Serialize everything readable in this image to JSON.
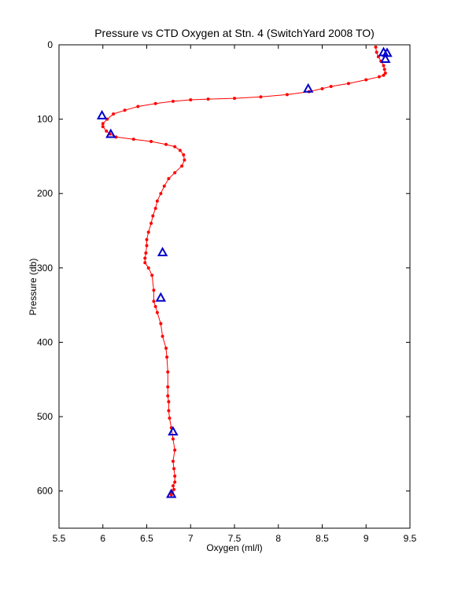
{
  "chart_data": {
    "type": "line",
    "title": "Pressure vs CTD Oxygen at Stn. 4 (SwitchYard 2008 TO)",
    "xlabel": "Oxygen (ml/l)",
    "ylabel": "Pressure (db)",
    "xlim": [
      5.5,
      9.5
    ],
    "ylim": [
      0,
      650
    ],
    "y_reversed": true,
    "grid": false,
    "xticks": [
      5.5,
      6,
      6.5,
      7,
      7.5,
      8,
      8.5,
      9,
      9.5
    ],
    "xtick_labels": [
      "5.5",
      "6",
      "6.5",
      "7",
      "7.5",
      "8",
      "8.5",
      "9",
      "9.5"
    ],
    "yticks": [
      0,
      100,
      200,
      300,
      400,
      500,
      600
    ],
    "ytick_labels": [
      "0",
      "100",
      "200",
      "300",
      "400",
      "500",
      "600"
    ],
    "series": [
      {
        "style": "line-with-dot-markers",
        "color": "#ff0000",
        "x": [
          9.11,
          9.12,
          9.14,
          9.17,
          9.2,
          9.21,
          9.22,
          9.2,
          9.15,
          9.0,
          8.8,
          8.6,
          8.5,
          8.35,
          8.1,
          7.8,
          7.5,
          7.2,
          7.0,
          6.8,
          6.6,
          6.4,
          6.25,
          6.12,
          6.05,
          6.0,
          6.0,
          6.04,
          6.08,
          6.15,
          6.35,
          6.55,
          6.72,
          6.82,
          6.88,
          6.92,
          6.93,
          6.9,
          6.82,
          6.75,
          6.7,
          6.66,
          6.62,
          6.6,
          6.57,
          6.55,
          6.52,
          6.5,
          6.5,
          6.49,
          6.48,
          6.48,
          6.52,
          6.56,
          6.58,
          6.58,
          6.6,
          6.62,
          6.66,
          6.68,
          6.72,
          6.73,
          6.74,
          6.74,
          6.74,
          6.75,
          6.75,
          6.76,
          6.78,
          6.8,
          6.82,
          6.8,
          6.81,
          6.82,
          6.82,
          6.8,
          6.81,
          6.79,
          6.78
        ],
        "y": [
          3,
          10,
          16,
          22,
          28,
          33,
          38,
          41,
          43,
          47,
          52,
          56,
          59,
          63,
          67,
          70,
          72,
          73,
          74,
          76,
          79,
          83,
          88,
          93,
          100,
          106,
          110,
          116,
          120,
          124,
          127,
          130,
          134,
          137,
          142,
          148,
          155,
          163,
          172,
          180,
          190,
          200,
          210,
          220,
          230,
          240,
          252,
          262,
          270,
          280,
          287,
          293,
          300,
          310,
          330,
          345,
          352,
          360,
          375,
          392,
          408,
          420,
          440,
          460,
          472,
          480,
          492,
          502,
          515,
          530,
          545,
          560,
          570,
          580,
          588,
          593,
          598,
          602,
          605
        ]
      },
      {
        "style": "triangle-markers",
        "color": "#0000cc",
        "x": [
          9.2,
          9.24,
          9.22,
          8.34,
          5.99,
          6.09,
          6.68,
          6.66,
          6.8,
          6.78
        ],
        "y": [
          10,
          11,
          19,
          59,
          95,
          120,
          279,
          340,
          520,
          604
        ]
      }
    ]
  }
}
